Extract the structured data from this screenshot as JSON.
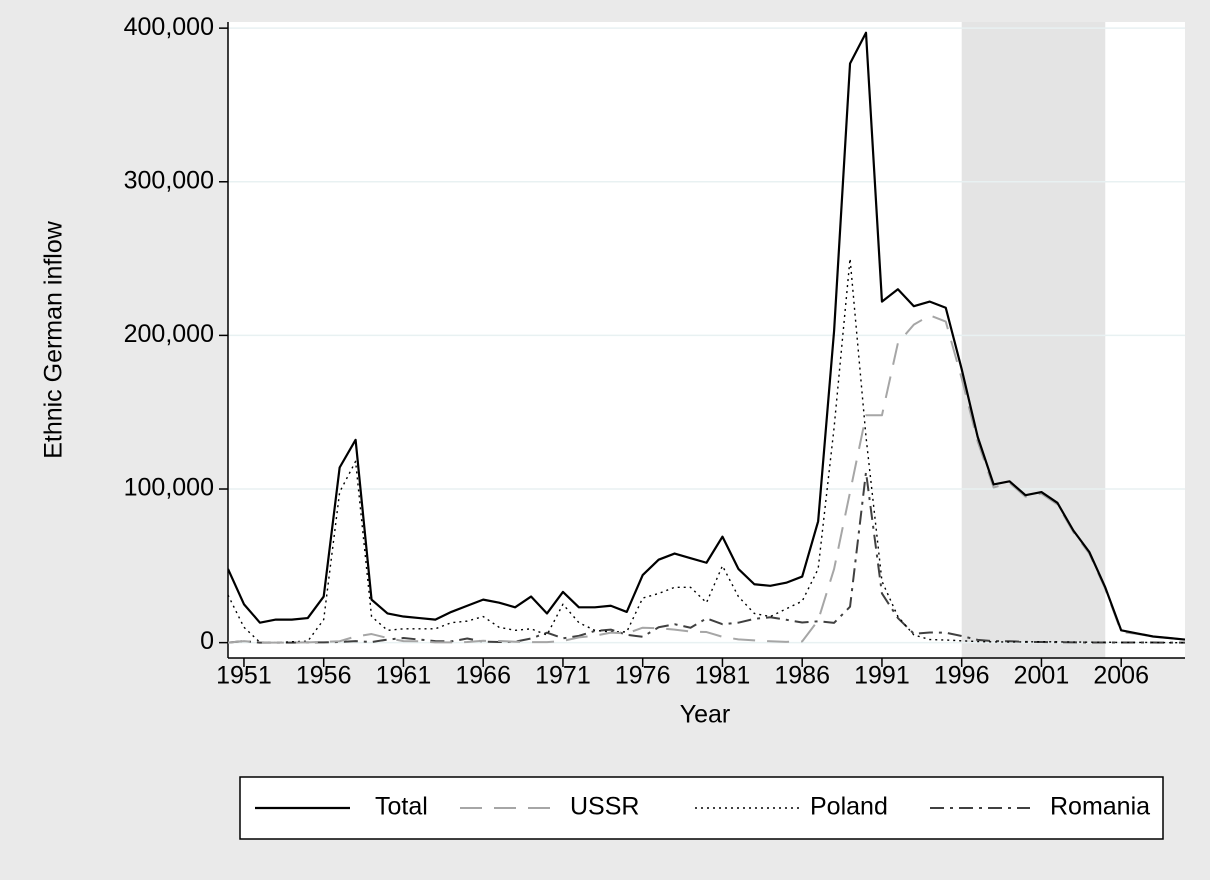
{
  "chart_data": {
    "type": "line",
    "xlabel": "Year",
    "ylabel": "Ethnic German inflow",
    "x": [
      1950,
      1951,
      1952,
      1953,
      1954,
      1955,
      1956,
      1957,
      1958,
      1959,
      1960,
      1961,
      1962,
      1963,
      1964,
      1965,
      1966,
      1967,
      1968,
      1969,
      1970,
      1971,
      1972,
      1973,
      1974,
      1975,
      1976,
      1977,
      1978,
      1979,
      1980,
      1981,
      1982,
      1983,
      1984,
      1985,
      1986,
      1987,
      1988,
      1989,
      1990,
      1991,
      1992,
      1993,
      1994,
      1995,
      1996,
      1997,
      1998,
      1999,
      2000,
      2001,
      2002,
      2003,
      2004,
      2005,
      2006,
      2007,
      2008,
      2009,
      2010
    ],
    "series": [
      {
        "name": "Total",
        "color": "#000000",
        "dash": "solid",
        "values": [
          48000,
          25000,
          13000,
          15000,
          15000,
          16000,
          30000,
          114000,
          132000,
          28000,
          19000,
          17000,
          16000,
          15000,
          20000,
          24000,
          28000,
          26000,
          23000,
          30000,
          19000,
          33000,
          23000,
          23000,
          24000,
          20000,
          44000,
          54000,
          58000,
          55000,
          52000,
          69000,
          48000,
          38000,
          37000,
          39000,
          43000,
          79000,
          203000,
          377000,
          397000,
          222000,
          230000,
          219000,
          222000,
          218000,
          178000,
          134000,
          103000,
          105000,
          96000,
          98000,
          91000,
          73000,
          59000,
          36000,
          8000,
          6000,
          4000,
          3000,
          2000
        ]
      },
      {
        "name": "USSR",
        "color": "#a6a6a6",
        "dash": "dash",
        "values": [
          0,
          1000,
          0,
          0,
          0,
          200,
          500,
          900,
          4000,
          5600,
          3000,
          1000,
          900,
          200,
          200,
          400,
          1200,
          1100,
          600,
          300,
          300,
          1100,
          3400,
          4500,
          6500,
          6000,
          9700,
          9300,
          8500,
          7200,
          6900,
          3800,
          2100,
          1500,
          900,
          500,
          800,
          14500,
          48000,
          98000,
          148000,
          148000,
          195000,
          207000,
          213000,
          209000,
          172000,
          131000,
          101000,
          104000,
          95000,
          97000,
          90000,
          72000,
          58000,
          35000,
          7000,
          5700,
          4000,
          3000,
          2000
        ]
      },
      {
        "name": "Poland",
        "color": "#000000",
        "dash": "dot",
        "values": [
          31000,
          10000,
          200,
          0,
          600,
          900,
          15000,
          98000,
          118000,
          17000,
          8000,
          9000,
          9000,
          9000,
          13000,
          14000,
          17000,
          10000,
          8000,
          9000,
          5000,
          25000,
          13000,
          8000,
          7000,
          7000,
          29000,
          32000,
          36000,
          36000,
          26000,
          50000,
          30000,
          19000,
          17000,
          22000,
          27000,
          48000,
          140000,
          250000,
          134000,
          40000,
          17000,
          5000,
          2000,
          1700,
          1200,
          700,
          500,
          400,
          500,
          600,
          500,
          400,
          300,
          300,
          100,
          100,
          100,
          0,
          0
        ]
      },
      {
        "name": "Romania",
        "color": "#404040",
        "dash": "dashdot",
        "values": [
          0,
          1000,
          0,
          0,
          0,
          200,
          200,
          400,
          1000,
          400,
          2000,
          3000,
          2000,
          1000,
          800,
          2700,
          600,
          400,
          600,
          2700,
          6500,
          2800,
          4400,
          7600,
          8500,
          5100,
          3800,
          10000,
          12000,
          9700,
          15800,
          12000,
          13000,
          15500,
          16500,
          14900,
          13100,
          13900,
          12900,
          23400,
          111000,
          32000,
          16000,
          5800,
          6600,
          6500,
          4300,
          1800,
          1000,
          900,
          500,
          400,
          300,
          200,
          100,
          100,
          100,
          100,
          100,
          0,
          0
        ]
      }
    ],
    "shaded_period": [
      1996,
      2005
    ],
    "xlim": [
      1950,
      2010
    ],
    "xticks": [
      1951,
      1956,
      1961,
      1966,
      1971,
      1976,
      1981,
      1986,
      1991,
      1996,
      2001,
      2006
    ],
    "ylim": [
      -10000,
      404000
    ],
    "yticks": [
      0,
      {
        "value": 100000,
        "label": "100,000"
      },
      {
        "value": 200000,
        "label": "200,000"
      },
      {
        "value": 300000,
        "label": "300,000"
      },
      {
        "value": 400000,
        "label": "400,000"
      }
    ],
    "grid": true,
    "legend": "bottom"
  }
}
